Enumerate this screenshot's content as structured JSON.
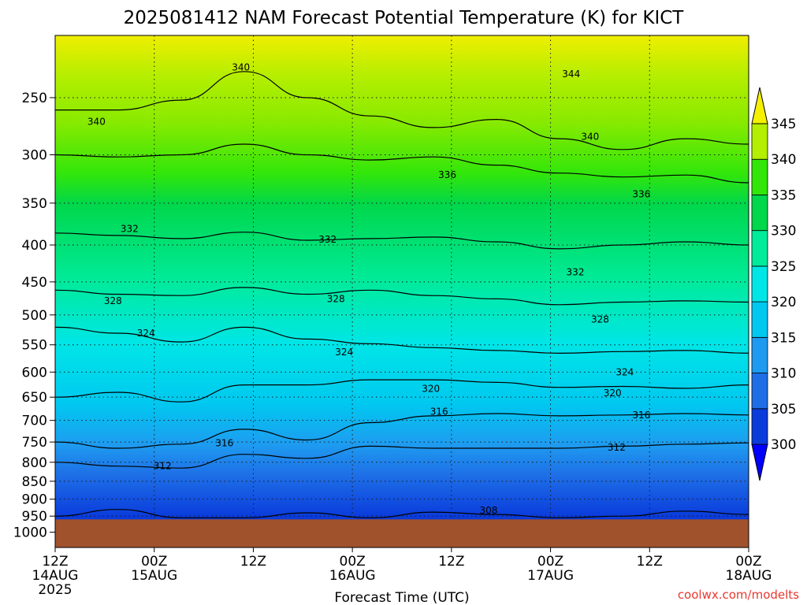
{
  "chart_data": {
    "type": "heatmap",
    "title": "2025081412 NAM Forecast Potential Temperature (K) for KICT",
    "xlabel": "Forecast Time (UTC)",
    "ylabel": "",
    "credit": "coolwx.com/modelts",
    "x_ticks": [
      {
        "hours": 0,
        "l1": "12Z",
        "l2": "14AUG",
        "l3": "2025"
      },
      {
        "hours": 12,
        "l1": "00Z",
        "l2": "15AUG",
        "l3": ""
      },
      {
        "hours": 24,
        "l1": "12Z",
        "l2": "",
        "l3": ""
      },
      {
        "hours": 36,
        "l1": "00Z",
        "l2": "16AUG",
        "l3": ""
      },
      {
        "hours": 48,
        "l1": "12Z",
        "l2": "",
        "l3": ""
      },
      {
        "hours": 60,
        "l1": "00Z",
        "l2": "17AUG",
        "l3": ""
      },
      {
        "hours": 72,
        "l1": "12Z",
        "l2": "",
        "l3": ""
      },
      {
        "hours": 84,
        "l1": "00Z",
        "l2": "18AUG",
        "l3": ""
      }
    ],
    "xlim": [
      0,
      84
    ],
    "y_ticks": [
      250,
      300,
      350,
      400,
      450,
      500,
      550,
      600,
      650,
      700,
      750,
      800,
      850,
      900,
      950,
      1000
    ],
    "ylim": [
      1050,
      205
    ],
    "y_scale": "log",
    "grid": true,
    "surface_pressure": 960,
    "surface_color": "#a0522d",
    "colorbar": {
      "levels": [
        300,
        305,
        310,
        315,
        320,
        325,
        330,
        335,
        340,
        345
      ],
      "colors": [
        "#0000ff",
        "#0a3cdc",
        "#1e6ee6",
        "#1e9bf0",
        "#00c8f0",
        "#00e6e6",
        "#00eb9b",
        "#00d74b",
        "#32e60a",
        "#b4ee00",
        "#f5f000"
      ],
      "position": "right"
    },
    "isentropes": [
      {
        "value": 340,
        "p": [
          260,
          260,
          252,
          230,
          250,
          265,
          275,
          268,
          285,
          295,
          285,
          290
        ]
      },
      {
        "value": 336,
        "p": [
          300,
          302,
          300,
          290,
          300,
          305,
          302,
          310,
          318,
          322,
          320,
          328
        ]
      },
      {
        "value": 332,
        "p": [
          385,
          388,
          392,
          384,
          394,
          392,
          390,
          396,
          405,
          400,
          396,
          400
        ]
      },
      {
        "value": 328,
        "p": [
          462,
          468,
          470,
          458,
          468,
          462,
          470,
          475,
          484,
          480,
          478,
          480
        ]
      },
      {
        "value": 324,
        "p": [
          520,
          530,
          545,
          520,
          540,
          548,
          555,
          560,
          565,
          562,
          560,
          565
        ]
      },
      {
        "value": 320,
        "p": [
          650,
          640,
          660,
          625,
          625,
          615,
          615,
          620,
          630,
          628,
          632,
          625
        ]
      },
      {
        "value": 316,
        "p": [
          750,
          765,
          755,
          720,
          745,
          705,
          690,
          685,
          690,
          688,
          685,
          688
        ]
      },
      {
        "value": 312,
        "p": [
          800,
          810,
          815,
          780,
          790,
          760,
          765,
          765,
          765,
          760,
          755,
          752
        ]
      },
      {
        "value": 308,
        "p": [
          950,
          930,
          955,
          955,
          940,
          955,
          938,
          945,
          955,
          950,
          935,
          945
        ]
      }
    ],
    "contour_labels": [
      {
        "value": "344",
        "hours": 62.5,
        "p": 232
      },
      {
        "value": "340",
        "hours": 22.5,
        "p": 227
      },
      {
        "value": "340",
        "hours": 5.0,
        "p": 270
      },
      {
        "value": "340",
        "hours": 64.8,
        "p": 283
      },
      {
        "value": "336",
        "hours": 47.5,
        "p": 320
      },
      {
        "value": "336",
        "hours": 71.0,
        "p": 340
      },
      {
        "value": "332",
        "hours": 9.0,
        "p": 380
      },
      {
        "value": "332",
        "hours": 33.0,
        "p": 393
      },
      {
        "value": "332",
        "hours": 63.0,
        "p": 436
      },
      {
        "value": "328",
        "hours": 7.0,
        "p": 478
      },
      {
        "value": "328",
        "hours": 34.0,
        "p": 475
      },
      {
        "value": "328",
        "hours": 66.0,
        "p": 507
      },
      {
        "value": "324",
        "hours": 11.0,
        "p": 530
      },
      {
        "value": "324",
        "hours": 35.0,
        "p": 563
      },
      {
        "value": "324",
        "hours": 69.0,
        "p": 600
      },
      {
        "value": "320",
        "hours": 45.5,
        "p": 633
      },
      {
        "value": "320",
        "hours": 67.5,
        "p": 642
      },
      {
        "value": "316",
        "hours": 46.5,
        "p": 681
      },
      {
        "value": "316",
        "hours": 71.0,
        "p": 688
      },
      {
        "value": "316",
        "hours": 20.5,
        "p": 753
      },
      {
        "value": "312",
        "hours": 13.0,
        "p": 810
      },
      {
        "value": "312",
        "hours": 68.0,
        "p": 763
      },
      {
        "value": "308",
        "hours": 52.5,
        "p": 933
      }
    ]
  }
}
